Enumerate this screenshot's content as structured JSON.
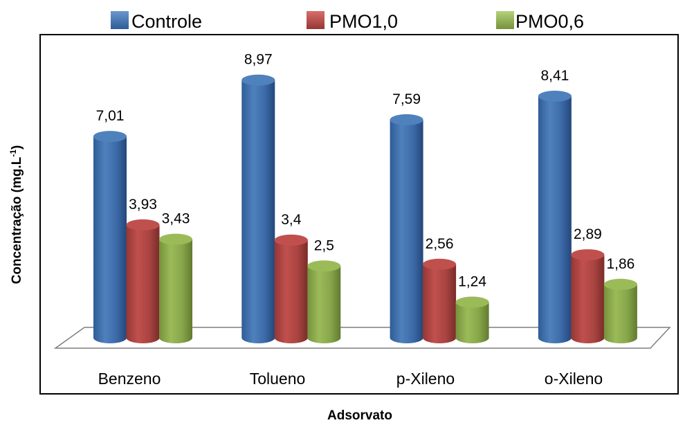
{
  "chart_data": {
    "type": "bar",
    "style": "3d-cylinder",
    "categories": [
      "Benzeno",
      "Tolueno",
      "p-Xileno",
      "o-Xileno"
    ],
    "series": [
      {
        "name": "Controle",
        "color": "#4F81BD",
        "values": [
          7.01,
          8.97,
          7.59,
          8.41
        ],
        "labels": [
          "7,01",
          "8,97",
          "7,59",
          "8,41"
        ]
      },
      {
        "name": "PMO1,0",
        "color": "#C0504D",
        "values": [
          3.93,
          3.4,
          2.56,
          2.89
        ],
        "labels": [
          "3,93",
          "3,4",
          "2,56",
          "2,89"
        ]
      },
      {
        "name": "PMO0,6",
        "color": "#9BBB59",
        "values": [
          3.43,
          2.5,
          1.24,
          1.86
        ],
        "labels": [
          "3,43",
          "2,5",
          "1,24",
          "1,86"
        ]
      }
    ],
    "xlabel": "Adsorvato",
    "ylabel": "Concentração (mg.L",
    "ylabel_superscript": "-1",
    "ylabel_suffix": ")",
    "ylim": [
      0,
      10
    ],
    "grid": false,
    "legend_position": "top"
  }
}
